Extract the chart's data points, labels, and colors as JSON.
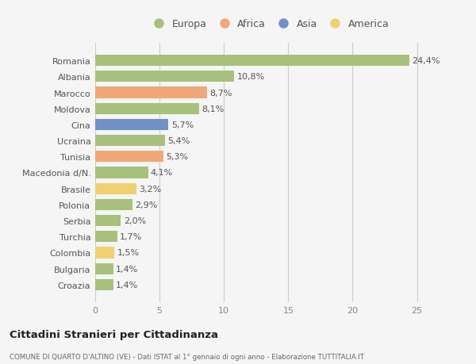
{
  "categories": [
    "Romania",
    "Albania",
    "Marocco",
    "Moldova",
    "Cina",
    "Ucraina",
    "Tunisia",
    "Macedonia d/N.",
    "Brasile",
    "Polonia",
    "Serbia",
    "Turchia",
    "Colombia",
    "Bulgaria",
    "Croazia"
  ],
  "values": [
    24.4,
    10.8,
    8.7,
    8.1,
    5.7,
    5.4,
    5.3,
    4.1,
    3.2,
    2.9,
    2.0,
    1.7,
    1.5,
    1.4,
    1.4
  ],
  "labels": [
    "24,4%",
    "10,8%",
    "8,7%",
    "8,1%",
    "5,7%",
    "5,4%",
    "5,3%",
    "4,1%",
    "3,2%",
    "2,9%",
    "2,0%",
    "1,7%",
    "1,5%",
    "1,4%",
    "1,4%"
  ],
  "colors": [
    "#a8c07c",
    "#a8c07c",
    "#f0a878",
    "#a8c07c",
    "#7090c8",
    "#a8c07c",
    "#f0a878",
    "#a8c07c",
    "#f0d070",
    "#a8c07c",
    "#a8c07c",
    "#a8c07c",
    "#f0d070",
    "#a8c07c",
    "#a8c07c"
  ],
  "legend_labels": [
    "Europa",
    "Africa",
    "Asia",
    "America"
  ],
  "legend_colors": [
    "#a8c07c",
    "#f0a878",
    "#7090c8",
    "#f0d070"
  ],
  "xlim": [
    0,
    27
  ],
  "xticks": [
    0,
    5,
    10,
    15,
    20,
    25
  ],
  "title": "Cittadini Stranieri per Cittadinanza",
  "subtitle": "COMUNE DI QUARTO D'ALTINO (VE) - Dati ISTAT al 1° gennaio di ogni anno - Elaborazione TUTTITALIA.IT",
  "bg_color": "#f5f5f5",
  "plot_bg_color": "#f5f5f5",
  "grid_color": "#cccccc",
  "bar_height": 0.7,
  "label_fontsize": 8,
  "ytick_fontsize": 8,
  "xtick_fontsize": 8
}
